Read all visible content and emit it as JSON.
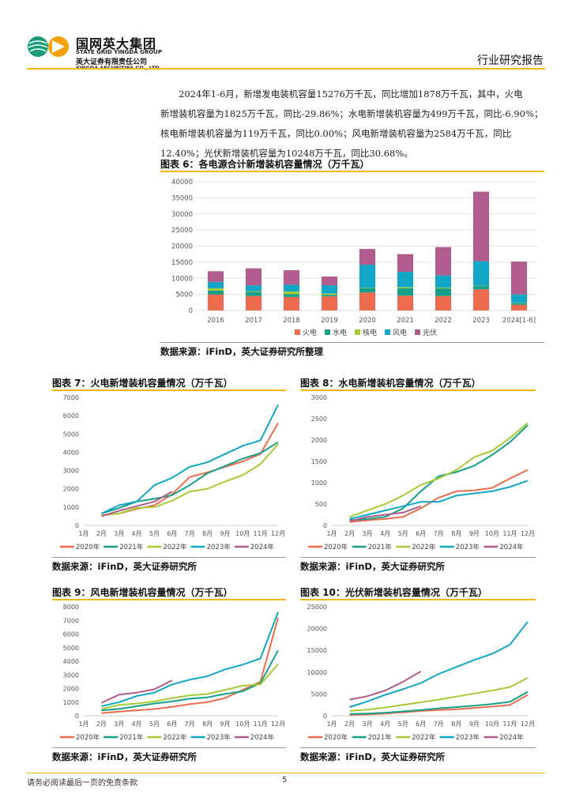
{
  "header": {
    "company_cn": "国网英大集团",
    "company_en": "STATE GRID YINGDA GROUP",
    "company_sub": "英大证券有限责任公司",
    "company_sub_en": "YINGDA SECURITIES CO., LTD.",
    "report_type": "行业研究报告"
  },
  "paragraph": {
    "line1": "2024年1-6月，新增发电装机容量15276万千瓦，同比增加1878万千瓦，其中，火电",
    "line2": "新增装机容量为1825万千瓦，同比-29.86%；水电新增装机容量为499万千瓦，同比-6.90%；",
    "line3": "核电新增装机容量为119万千瓦，同比0.00%；风电新增装机容量为2584万千瓦，同比",
    "line4": "12.40%；光伏新增装机容量为10248万千瓦，同比30.68%。"
  },
  "figures": {
    "fig6": {
      "title": "图表 6：各电源合计新增装机容量情况（万千瓦）",
      "source": "数据来源：iFinD，英大证券研究所整理"
    },
    "fig7": {
      "title": "图表 7：火电新增装机容量情况（万千瓦）",
      "source": "数据来源：iFinD，英大证券研究所"
    },
    "fig8": {
      "title": "图表 8：水电新增装机容量情况（万千瓦）",
      "source": "数据来源：iFinD，英大证券研究所"
    },
    "fig9": {
      "title": "图表 9：风电新增装机容量情况（万千瓦）",
      "source": "数据来源：iFinD，英大证券研究所"
    },
    "fig10": {
      "title": "图表 10：光伏新增装机容量情况（万千瓦）",
      "source": "数据来源：iFinD，英大证券研究所"
    }
  },
  "footer": {
    "disclaimer": "请务必阅读最后一页的免责条款",
    "page_number": "5"
  },
  "colors": {
    "accent": "#f2b705",
    "thermal": "#ed6c4d",
    "hydro": "#15a087",
    "nuclear": "#a6cb35",
    "wind": "#12a6c6",
    "solar": "#b05c8c"
  },
  "chart_data": [
    {
      "id": "fig6",
      "type": "bar",
      "stacked": true,
      "categories": [
        "2016",
        "2017",
        "2018",
        "2019",
        "2020",
        "2021",
        "2022",
        "2023",
        "2024[1-6]"
      ],
      "series": [
        {
          "name": "火电",
          "color": "#ed6c4d",
          "values": [
            5000,
            4500,
            4200,
            4400,
            5600,
            4600,
            4500,
            6600,
            1800
          ]
        },
        {
          "name": "水电",
          "color": "#15a087",
          "values": [
            1200,
            1300,
            900,
            450,
            1300,
            2300,
            2400,
            1000,
            500
          ]
        },
        {
          "name": "核电",
          "color": "#a6cb35",
          "values": [
            700,
            200,
            800,
            400,
            100,
            300,
            200,
            100,
            100
          ]
        },
        {
          "name": "风电",
          "color": "#12a6c6",
          "values": [
            2000,
            1800,
            2100,
            2600,
            7200,
            4800,
            3800,
            7600,
            2600
          ]
        },
        {
          "name": "光伏",
          "color": "#b05c8c",
          "values": [
            3300,
            5300,
            4500,
            2700,
            4900,
            5500,
            8800,
            21600,
            10200
          ]
        }
      ],
      "ylim": [
        0,
        40000
      ],
      "yticks": [
        0,
        5000,
        10000,
        15000,
        20000,
        25000,
        30000,
        35000,
        40000
      ],
      "legend_position": "bottom"
    },
    {
      "id": "fig7",
      "type": "line",
      "x": [
        "1月",
        "2月",
        "3月",
        "4月",
        "5月",
        "6月",
        "7月",
        "8月",
        "9月",
        "10月",
        "11月",
        "12月"
      ],
      "series": [
        {
          "name": "2020年",
          "color": "#ed6c4d",
          "values": [
            null,
            550,
            650,
            900,
            1100,
            1700,
            2650,
            2900,
            3200,
            3500,
            3900,
            5600
          ]
        },
        {
          "name": "2021年",
          "color": "#15a087",
          "values": [
            null,
            650,
            950,
            1300,
            1450,
            1650,
            2200,
            2850,
            3250,
            3650,
            3950,
            4550
          ]
        },
        {
          "name": "2022年",
          "color": "#a6cb35",
          "values": [
            null,
            550,
            650,
            950,
            1000,
            1350,
            1850,
            2000,
            2400,
            2750,
            3350,
            4450
          ]
        },
        {
          "name": "2023年",
          "color": "#12a6c6",
          "values": [
            null,
            650,
            1100,
            1300,
            2200,
            2600,
            3200,
            3450,
            3900,
            4350,
            4650,
            6600
          ]
        },
        {
          "name": "2024年",
          "color": "#b05c8c",
          "values": [
            null,
            500,
            800,
            1050,
            1300,
            1850,
            null,
            null,
            null,
            null,
            null,
            null
          ]
        }
      ],
      "ylim": [
        0,
        7000
      ],
      "yticks": [
        0,
        1000,
        2000,
        3000,
        4000,
        5000,
        6000,
        7000
      ],
      "legend_position": "bottom"
    },
    {
      "id": "fig8",
      "type": "line",
      "x": [
        "1月",
        "2月",
        "3月",
        "4月",
        "5月",
        "6月",
        "7月",
        "8月",
        "9月",
        "10月",
        "11月",
        "12月"
      ],
      "series": [
        {
          "name": "2020年",
          "color": "#ed6c4d",
          "values": [
            null,
            80,
            120,
            150,
            200,
            400,
            650,
            800,
            820,
            880,
            1100,
            1300
          ]
        },
        {
          "name": "2021年",
          "color": "#15a087",
          "values": [
            null,
            120,
            150,
            200,
            400,
            800,
            1150,
            1250,
            1400,
            1650,
            1950,
            2350
          ]
        },
        {
          "name": "2022年",
          "color": "#a6cb35",
          "values": [
            null,
            200,
            350,
            500,
            700,
            950,
            1100,
            1300,
            1600,
            1750,
            2050,
            2400
          ]
        },
        {
          "name": "2023年",
          "color": "#12a6c6",
          "values": [
            null,
            150,
            250,
            350,
            450,
            550,
            550,
            700,
            750,
            800,
            900,
            1050
          ]
        },
        {
          "name": "2024年",
          "color": "#b05c8c",
          "values": [
            null,
            100,
            200,
            250,
            300,
            450,
            null,
            null,
            null,
            null,
            null,
            null
          ]
        }
      ],
      "ylim": [
        0,
        3000
      ],
      "yticks": [
        0,
        500,
        1000,
        1500,
        2000,
        2500,
        3000
      ],
      "legend_position": "bottom"
    },
    {
      "id": "fig9",
      "type": "line",
      "x": [
        "1月",
        "2月",
        "3月",
        "4月",
        "5月",
        "6月",
        "7月",
        "8月",
        "9月",
        "10月",
        "11月",
        "12月"
      ],
      "series": [
        {
          "name": "2020年",
          "color": "#ed6c4d",
          "values": [
            null,
            200,
            300,
            400,
            500,
            650,
            850,
            1000,
            1300,
            1900,
            2500,
            7200
          ]
        },
        {
          "name": "2021年",
          "color": "#15a087",
          "values": [
            null,
            400,
            500,
            700,
            900,
            1050,
            1250,
            1350,
            1600,
            1800,
            2400,
            4800
          ]
        },
        {
          "name": "2022年",
          "color": "#a6cb35",
          "values": [
            null,
            500,
            800,
            900,
            1050,
            1300,
            1500,
            1600,
            1900,
            2200,
            2300,
            3800
          ]
        },
        {
          "name": "2023年",
          "color": "#12a6c6",
          "values": [
            null,
            700,
            1000,
            1450,
            1700,
            2300,
            2650,
            2900,
            3400,
            3750,
            4200,
            7600
          ]
        },
        {
          "name": "2024年",
          "color": "#b05c8c",
          "values": [
            null,
            950,
            1550,
            1700,
            1950,
            2600,
            null,
            null,
            null,
            null,
            null,
            null
          ]
        }
      ],
      "ylim": [
        0,
        8000
      ],
      "yticks": [
        0,
        1000,
        2000,
        3000,
        4000,
        5000,
        6000,
        7000,
        8000
      ],
      "legend_position": "bottom"
    },
    {
      "id": "fig10",
      "type": "line",
      "x": [
        "1月",
        "2月",
        "3月",
        "4月",
        "5月",
        "6月",
        "7月",
        "8月",
        "9月",
        "10月",
        "11月",
        "12月"
      ],
      "series": [
        {
          "name": "2020年",
          "color": "#ed6c4d",
          "values": [
            null,
            200,
            300,
            500,
            800,
            1100,
            1300,
            1500,
            1800,
            2100,
            2500,
            4800
          ]
        },
        {
          "name": "2021年",
          "color": "#15a087",
          "values": [
            null,
            400,
            500,
            700,
            1000,
            1300,
            1700,
            2000,
            2300,
            2700,
            3200,
            5500
          ]
        },
        {
          "name": "2022年",
          "color": "#a6cb35",
          "values": [
            null,
            1100,
            1400,
            1900,
            2500,
            3100,
            3700,
            4400,
            5100,
            5800,
            6600,
            8700
          ]
        },
        {
          "name": "2023年",
          "color": "#12a6c6",
          "values": [
            null,
            2000,
            3300,
            4800,
            6100,
            7500,
            9600,
            11200,
            12800,
            14200,
            16300,
            21600
          ]
        },
        {
          "name": "2024年",
          "color": "#b05c8c",
          "values": [
            null,
            3700,
            4500,
            5800,
            7800,
            10200,
            null,
            null,
            null,
            null,
            null,
            null
          ]
        }
      ],
      "ylim": [
        0,
        25000
      ],
      "yticks": [
        0,
        5000,
        10000,
        15000,
        20000,
        25000
      ],
      "legend_position": "bottom"
    }
  ]
}
